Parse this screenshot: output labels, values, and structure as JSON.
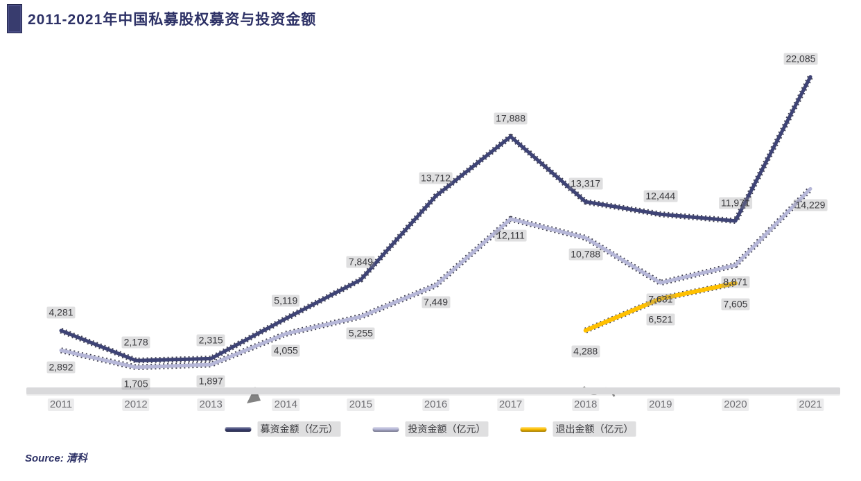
{
  "title": "2011-2021年中国私募股权募资与投资金额",
  "source": {
    "prefix": "Source:",
    "name": "清科"
  },
  "colors": {
    "title": "#2d3166",
    "fundraising_line": "#3e4375",
    "investment_line": "#b6b7d8",
    "exit_line": "#ffc000",
    "axis_band": "#d9d9db",
    "label_text": "#39393d",
    "tick_text": "#6e6e73"
  },
  "chart_data": {
    "type": "line",
    "title": "2011-2021年中国私募股权募资与投资金额",
    "x": [
      "2011",
      "2012",
      "2013",
      "2014",
      "2015",
      "2016",
      "2017",
      "2018",
      "2019",
      "2020",
      "2021"
    ],
    "series": [
      {
        "name": "募资金额（亿元）",
        "color": "#3e4375",
        "values": [
          4281,
          2178,
          2315,
          5119,
          7849,
          13712,
          17888,
          13317,
          12444,
          11971,
          22085
        ]
      },
      {
        "name": "投资金额（亿元）",
        "color": "#b6b7d8",
        "values": [
          2892,
          1705,
          1897,
          4055,
          5255,
          7449,
          12111,
          10788,
          7631,
          8871,
          14229
        ]
      },
      {
        "name": "退出金额（亿元）",
        "color": "#ffc000",
        "values": [
          null,
          null,
          null,
          null,
          null,
          null,
          null,
          4288,
          6521,
          7605,
          null
        ]
      }
    ],
    "ylim": [
      0,
      23000
    ],
    "grid": false,
    "value_labels": true,
    "legend_position": "bottom"
  }
}
